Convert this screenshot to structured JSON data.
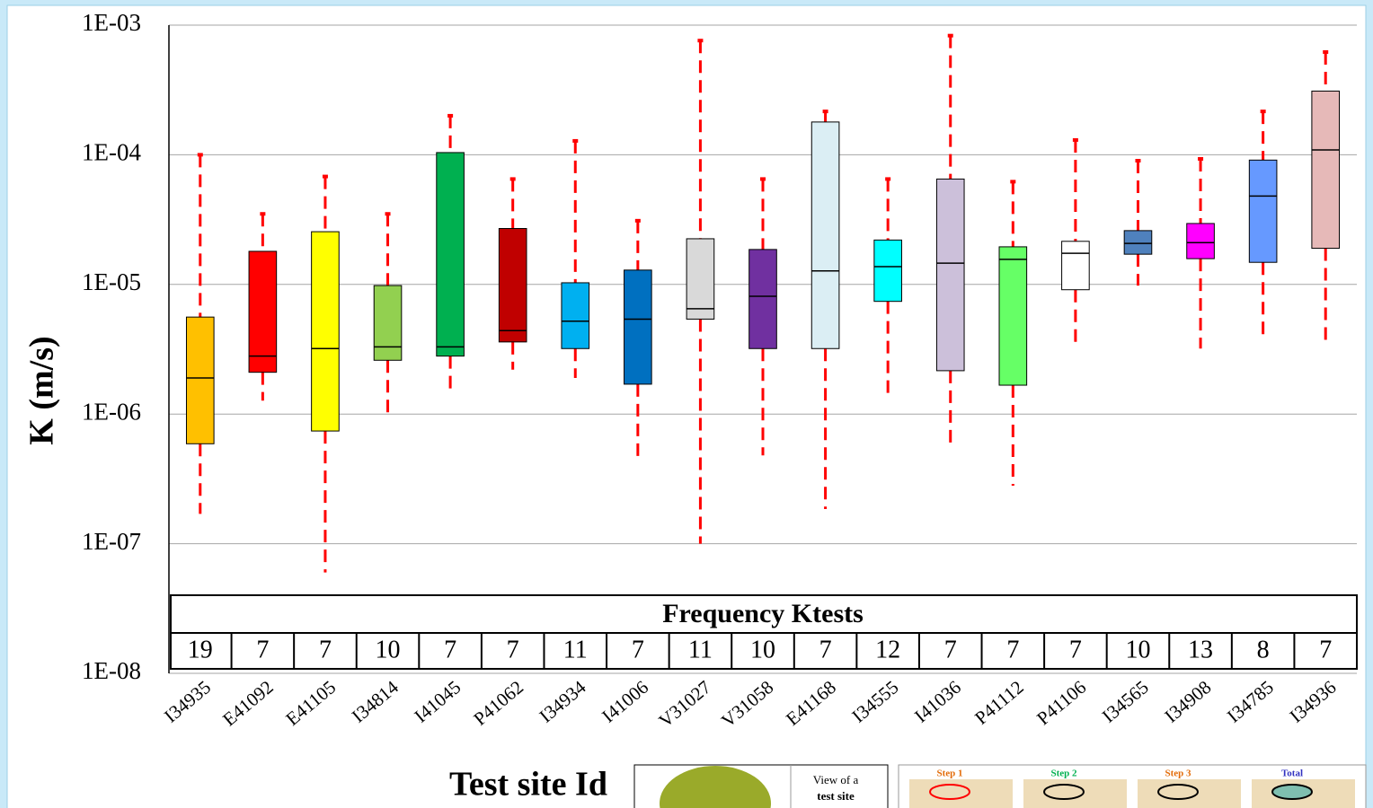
{
  "chart_data": {
    "type": "box",
    "y_label": "K (m/s)",
    "x_label": "Test site Id",
    "log_scale": true,
    "grid": true,
    "ylim": [
      1e-08,
      0.001
    ],
    "yticks": [
      {
        "value": 1e-08,
        "label": "1E-08"
      },
      {
        "value": 1e-07,
        "label": "1E-07"
      },
      {
        "value": 1e-06,
        "label": "1E-06"
      },
      {
        "value": 1e-05,
        "label": "1E-05"
      },
      {
        "value": 0.0001,
        "label": "1E-04"
      },
      {
        "value": 0.001,
        "label": "1E-03"
      }
    ],
    "whisker_color": "#ff0000",
    "categories": [
      "I34935",
      "E41092",
      "E41105",
      "I34814",
      "I41045",
      "P41062",
      "I34934",
      "I41006",
      "V31027",
      "V31058",
      "E41168",
      "I34555",
      "I41036",
      "P41112",
      "P41106",
      "I34565",
      "I34908",
      "I34785",
      "I34936"
    ],
    "colors": [
      "#ffc000",
      "#ff0000",
      "#ffff00",
      "#92d050",
      "#00b050",
      "#c00000",
      "#00b0f0",
      "#0070c0",
      "#d9d9d9",
      "#7030a0",
      "#dbeef4",
      "#00ffff",
      "#ccc0da",
      "#66ff66",
      "#ffffff",
      "#4f81bd",
      "#ff00ff",
      "#6699ff",
      "#e6b9b8"
    ],
    "whisker_high": [
      0.0001,
      3.5e-05,
      6.8e-05,
      3.5e-05,
      0.0002,
      6.5e-05,
      0.000128,
      3.1e-05,
      0.00076,
      6.5e-05,
      0.000216,
      6.5e-05,
      0.00083,
      6.2e-05,
      0.00013,
      9e-05,
      9.3e-05,
      0.000216,
      0.00062
    ],
    "q3": [
      5.6e-06,
      1.8e-05,
      2.55e-05,
      9.8e-06,
      0.000104,
      2.7e-05,
      1.03e-05,
      1.29e-05,
      2.25e-05,
      1.86e-05,
      0.000179,
      2.2e-05,
      6.5e-05,
      1.95e-05,
      2.15e-05,
      2.6e-05,
      2.95e-05,
      9.1e-05,
      0.00031
    ],
    "median": [
      1.9e-06,
      2.8e-06,
      3.2e-06,
      3.3e-06,
      3.3e-06,
      4.4e-06,
      5.2e-06,
      5.4e-06,
      6.5e-06,
      8.1e-06,
      1.27e-05,
      1.37e-05,
      1.46e-05,
      1.56e-05,
      1.74e-05,
      2.07e-05,
      2.1e-05,
      4.8e-05,
      0.000109
    ],
    "q1": [
      5.9e-07,
      2.1e-06,
      7.4e-07,
      2.6e-06,
      2.8e-06,
      3.6e-06,
      3.2e-06,
      1.7e-06,
      5.4e-06,
      3.2e-06,
      3.2e-06,
      7.4e-06,
      2.16e-06,
      1.67e-06,
      9.1e-06,
      1.71e-05,
      1.58e-05,
      1.48e-05,
      1.9e-05
    ],
    "whisker_low": [
      1.7e-07,
      1.27e-06,
      6e-08,
      1e-06,
      1.44e-06,
      2.2e-06,
      1.9e-06,
      4.7e-07,
      1e-07,
      4.8e-07,
      1.85e-07,
      1.34e-06,
      5.6e-07,
      2.8e-07,
      3.5e-06,
      9.8e-06,
      3.2e-06,
      3.8e-06,
      3.3e-06
    ],
    "table_title": "Frequency Ktests",
    "frequency": [
      19,
      7,
      7,
      10,
      7,
      7,
      11,
      7,
      11,
      10,
      7,
      12,
      7,
      7,
      7,
      10,
      13,
      8,
      7
    ],
    "inset_caption": [
      "View of a",
      "test site"
    ],
    "inset_steps": [
      "Step 1",
      "Step 2",
      "Step 3",
      "Total"
    ]
  }
}
